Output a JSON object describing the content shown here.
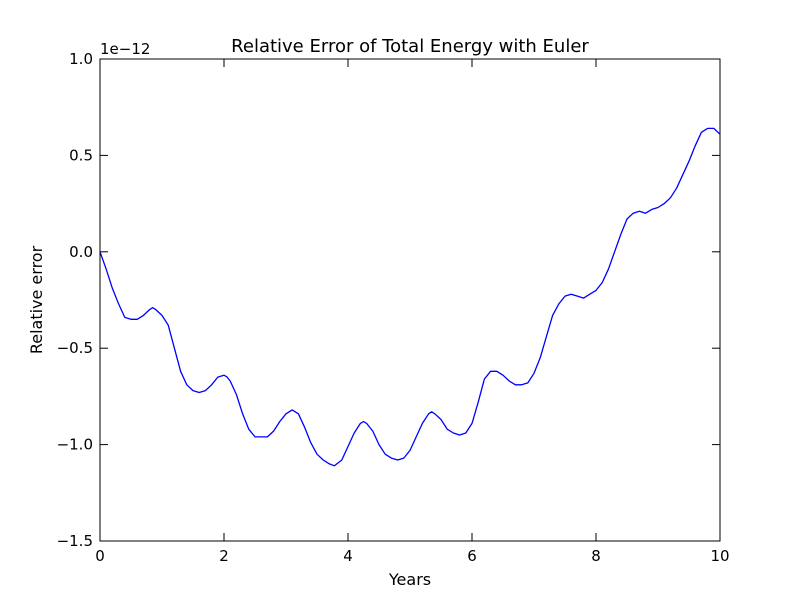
{
  "chart_data": {
    "type": "line",
    "title": "Relative Error of Total Energy with Euler",
    "xlabel": "Years",
    "ylabel": "Relative error",
    "offset_label": "1e−12",
    "xlim": [
      0,
      10
    ],
    "ylim": [
      -1.5,
      1.0
    ],
    "x_ticks": [
      0,
      2,
      4,
      6,
      8,
      10
    ],
    "x_tick_labels": [
      "0",
      "2",
      "4",
      "6",
      "8",
      "10"
    ],
    "y_ticks": [
      1.0,
      0.5,
      0.0,
      -0.5,
      -1.0,
      -1.5
    ],
    "y_tick_labels": [
      "1.0",
      "0.5",
      "0.0",
      "−0.5",
      "−1.0",
      "−1.5"
    ],
    "grid": false,
    "line_color": "#0000ff",
    "series": [
      {
        "x": [
          0,
          0.1,
          0.2,
          0.3,
          0.4,
          0.5,
          0.6,
          0.7,
          0.8,
          0.85,
          0.9,
          1.0,
          1.1,
          1.2,
          1.3,
          1.4,
          1.5,
          1.6,
          1.7,
          1.8,
          1.9,
          2.0,
          2.05,
          2.1,
          2.2,
          2.3,
          2.4,
          2.5,
          2.6,
          2.7,
          2.8,
          2.9,
          3.0,
          3.1,
          3.2,
          3.3,
          3.4,
          3.5,
          3.6,
          3.7,
          3.78,
          3.9,
          4.0,
          4.1,
          4.2,
          4.25,
          4.3,
          4.4,
          4.5,
          4.6,
          4.7,
          4.8,
          4.9,
          5.0,
          5.1,
          5.2,
          5.3,
          5.35,
          5.4,
          5.5,
          5.6,
          5.7,
          5.8,
          5.9,
          6.0,
          6.1,
          6.2,
          6.3,
          6.4,
          6.5,
          6.6,
          6.7,
          6.8,
          6.9,
          7.0,
          7.1,
          7.2,
          7.3,
          7.4,
          7.5,
          7.6,
          7.7,
          7.8,
          7.9,
          8.0,
          8.1,
          8.2,
          8.3,
          8.4,
          8.5,
          8.6,
          8.7,
          8.8,
          8.9,
          9.0,
          9.1,
          9.2,
          9.3,
          9.4,
          9.5,
          9.6,
          9.7,
          9.8,
          9.9,
          10.0
        ],
        "y": [
          0.0,
          -0.09,
          -0.19,
          -0.27,
          -0.34,
          -0.35,
          -0.35,
          -0.33,
          -0.3,
          -0.29,
          -0.3,
          -0.33,
          -0.38,
          -0.5,
          -0.62,
          -0.69,
          -0.72,
          -0.73,
          -0.72,
          -0.69,
          -0.65,
          -0.64,
          -0.65,
          -0.67,
          -0.74,
          -0.84,
          -0.92,
          -0.96,
          -0.96,
          -0.96,
          -0.93,
          -0.88,
          -0.84,
          -0.82,
          -0.84,
          -0.91,
          -0.99,
          -1.05,
          -1.08,
          -1.1,
          -1.11,
          -1.08,
          -1.01,
          -0.94,
          -0.89,
          -0.88,
          -0.89,
          -0.93,
          -1.0,
          -1.05,
          -1.07,
          -1.08,
          -1.07,
          -1.03,
          -0.96,
          -0.89,
          -0.84,
          -0.83,
          -0.84,
          -0.87,
          -0.92,
          -0.94,
          -0.95,
          -0.94,
          -0.89,
          -0.78,
          -0.66,
          -0.62,
          -0.62,
          -0.64,
          -0.67,
          -0.69,
          -0.69,
          -0.68,
          -0.63,
          -0.55,
          -0.44,
          -0.33,
          -0.27,
          -0.23,
          -0.22,
          -0.23,
          -0.24,
          -0.22,
          -0.2,
          -0.16,
          -0.09,
          0.0,
          0.09,
          0.17,
          0.2,
          0.21,
          0.2,
          0.22,
          0.23,
          0.25,
          0.28,
          0.33,
          0.4,
          0.47,
          0.55,
          0.62,
          0.64,
          0.64,
          0.61
        ]
      }
    ]
  }
}
